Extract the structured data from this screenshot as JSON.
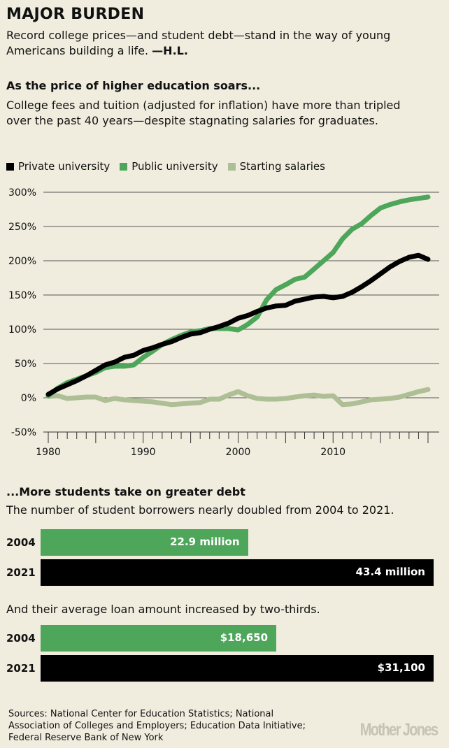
{
  "header": {
    "title": "MAJOR BURDEN",
    "dek": "Record college prices—and student debt—stand in the way of young Americans building a life. ",
    "byline": "—H.L."
  },
  "section1": {
    "heading": "As the price of higher education soars...",
    "text": "College fees and tuition (adjusted for inflation) have more than tripled over the past 40 years—despite stagnating salaries for graduates."
  },
  "section2": {
    "heading": "...More students take on greater debt",
    "text1": "The number of student borrowers nearly doubled from 2004 to 2021.",
    "text2": "And their average loan amount increased by two-thirds."
  },
  "colors": {
    "private": "#000000",
    "public": "#4ea65a",
    "salaries": "#aebf96",
    "background": "#f0eddf"
  },
  "chart_data": [
    {
      "type": "line",
      "xlabel": "",
      "ylabel": "",
      "xlim": [
        1980,
        2020
      ],
      "ylim": [
        -50,
        300
      ],
      "x_ticks": [
        "1980",
        "1990",
        "2000",
        "2010"
      ],
      "y_ticks": [
        "300%",
        "250%",
        "200%",
        "150%",
        "100%",
        "50%",
        "0%",
        "-50%"
      ],
      "grid": true,
      "legend": "top-left",
      "x": [
        1980,
        1981,
        1982,
        1983,
        1984,
        1985,
        1986,
        1987,
        1988,
        1989,
        1990,
        1991,
        1992,
        1993,
        1994,
        1995,
        1996,
        1997,
        1998,
        1999,
        2000,
        2001,
        2002,
        2003,
        2004,
        2005,
        2006,
        2007,
        2008,
        2009,
        2010,
        2011,
        2012,
        2013,
        2014,
        2015,
        2016,
        2017,
        2018,
        2019,
        2020
      ],
      "series": [
        {
          "name": "Private university",
          "color": "#000000",
          "values": [
            5,
            13,
            19,
            25,
            32,
            40,
            48,
            52,
            59,
            62,
            69,
            73,
            78,
            82,
            88,
            93,
            95,
            100,
            104,
            109,
            116,
            120,
            126,
            131,
            134,
            135,
            141,
            144,
            147,
            148,
            146,
            148,
            154,
            162,
            171,
            181,
            191,
            199,
            205,
            208,
            202
          ]
        },
        {
          "name": "Public university",
          "color": "#4ea65a",
          "values": [
            3,
            14,
            22,
            27,
            32,
            37,
            44,
            46,
            46,
            48,
            59,
            68,
            78,
            85,
            91,
            96,
            98,
            101,
            101,
            101,
            99,
            107,
            118,
            143,
            158,
            165,
            173,
            176,
            188,
            200,
            212,
            232,
            246,
            254,
            266,
            277,
            282,
            286,
            289,
            291,
            293
          ]
        },
        {
          "name": "Starting salaries",
          "color": "#aebf96",
          "values": [
            2,
            3,
            -1,
            0,
            1,
            1,
            -4,
            -1,
            -3,
            -4,
            -5,
            -6,
            -8,
            -10,
            -9,
            -8,
            -7,
            -2,
            -2,
            4,
            9,
            3,
            -1,
            -2,
            -2,
            -1,
            1,
            3,
            4,
            2,
            3,
            -10,
            -9,
            -6,
            -3,
            -2,
            -1,
            1,
            5,
            9,
            12
          ]
        }
      ]
    },
    {
      "type": "bar",
      "title": "",
      "categories": [
        "2004",
        "2021"
      ],
      "values": [
        22.9,
        43.4
      ],
      "labels": [
        "22.9 million",
        "43.4 million"
      ],
      "colors": [
        "#4ea65a",
        "#000000"
      ]
    },
    {
      "type": "bar",
      "title": "",
      "categories": [
        "2004",
        "2021"
      ],
      "values": [
        18650,
        31100
      ],
      "labels": [
        "$18,650",
        "$31,100"
      ],
      "colors": [
        "#4ea65a",
        "#000000"
      ]
    }
  ],
  "footer": {
    "sources": "Sources: National Center for Education Statistics; National Association of Colleges and Employers; Education Data Initiative; Federal Reserve Bank of New York",
    "logo": "Mother Jones"
  }
}
